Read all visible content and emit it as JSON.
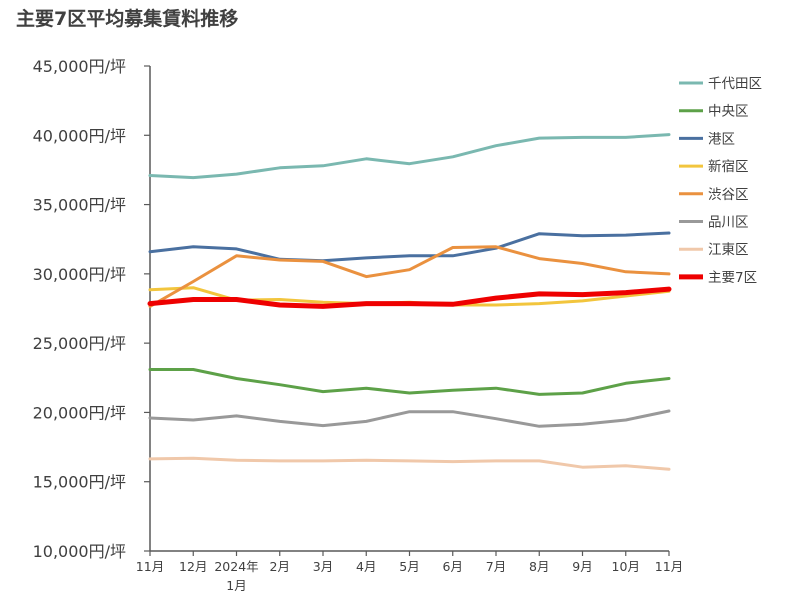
{
  "chart_data": {
    "type": "line",
    "title": "主要7区平均募集賃料推移",
    "xlabel": "",
    "ylabel": "",
    "ylim": [
      10000,
      45000
    ],
    "y_ticks": [
      10000,
      15000,
      20000,
      25000,
      30000,
      35000,
      40000,
      45000
    ],
    "y_tick_labels": [
      "10,000円/坪",
      "15,000円/坪",
      "20,000円/坪",
      "25,000円/坪",
      "30,000円/坪",
      "35,000円/坪",
      "40,000円/坪",
      "45,000円/坪"
    ],
    "categories": [
      "11月",
      "12月",
      "2024年 1月",
      "2月",
      "3月",
      "4月",
      "5月",
      "6月",
      "7月",
      "8月",
      "9月",
      "10月",
      "11月"
    ],
    "x_tick_lines": [
      [
        "11月"
      ],
      [
        "12月"
      ],
      [
        "2024年",
        "1月"
      ],
      [
        "2月"
      ],
      [
        "3月"
      ],
      [
        "4月"
      ],
      [
        "5月"
      ],
      [
        "6月"
      ],
      [
        "7月"
      ],
      [
        "8月"
      ],
      [
        "9月"
      ],
      [
        "10月"
      ],
      [
        "11月"
      ]
    ],
    "grid": false,
    "legend_position": "right",
    "series": [
      {
        "name": "千代田区",
        "color": "#7ab8b0",
        "width": 3,
        "values": [
          37100,
          36950,
          37200,
          37650,
          37800,
          38300,
          37950,
          38450,
          39250,
          39800,
          39850,
          39850,
          40050
        ]
      },
      {
        "name": "中央区",
        "color": "#5da148",
        "width": 3,
        "values": [
          23100,
          23100,
          22450,
          22000,
          21500,
          21750,
          21400,
          21600,
          21750,
          21300,
          21400,
          22100,
          22450
        ]
      },
      {
        "name": "港区",
        "color": "#4a70a0",
        "width": 3,
        "values": [
          31600,
          31950,
          31800,
          31050,
          30950,
          31150,
          31300,
          31300,
          31850,
          32900,
          32750,
          32800,
          32950
        ]
      },
      {
        "name": "新宿区",
        "color": "#f2c53d",
        "width": 3,
        "values": [
          28850,
          29000,
          28100,
          28150,
          27950,
          27850,
          27950,
          27750,
          27750,
          27850,
          28050,
          28400,
          28750
        ]
      },
      {
        "name": "渋谷区",
        "color": "#ea913f",
        "width": 3,
        "values": [
          27650,
          29450,
          31300,
          31000,
          30900,
          29800,
          30300,
          31900,
          31950,
          31100,
          30750,
          30150,
          30000
        ]
      },
      {
        "name": "品川区",
        "color": "#999999",
        "width": 3,
        "values": [
          19600,
          19450,
          19750,
          19350,
          19050,
          19350,
          20050,
          20050,
          19550,
          19000,
          19150,
          19450,
          20100
        ]
      },
      {
        "name": "江東区",
        "color": "#f0c8aa",
        "width": 3,
        "values": [
          16650,
          16700,
          16550,
          16500,
          16500,
          16550,
          16500,
          16450,
          16500,
          16500,
          16050,
          16150,
          15900
        ]
      },
      {
        "name": "主要7区",
        "color": "#ee0000",
        "width": 5,
        "values": [
          27850,
          28150,
          28150,
          27750,
          27650,
          27850,
          27850,
          27800,
          28250,
          28550,
          28500,
          28650,
          28900
        ]
      }
    ]
  }
}
